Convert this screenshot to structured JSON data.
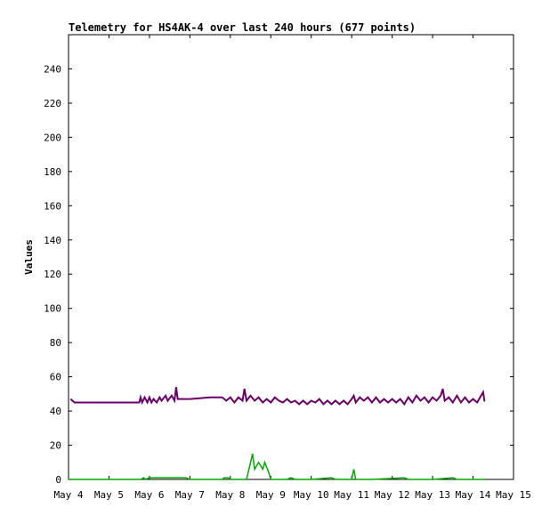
{
  "chart_data": {
    "type": "line",
    "title": "Telemetry for HS4AK-4 over last 240 hours (677 points)",
    "xlabel": "",
    "ylabel": "Values",
    "x_tick_labels": [
      "May 4",
      "May 5",
      "May 6",
      "May 7",
      "May 8",
      "May 9",
      "May 10",
      "May 11",
      "May 12",
      "May 13",
      "May 14",
      "May 15"
    ],
    "xlim_days": [
      4,
      15
    ],
    "ylim": [
      0,
      260
    ],
    "y_ticks": [
      0,
      20,
      40,
      60,
      80,
      100,
      120,
      140,
      160,
      180,
      200,
      220,
      240
    ],
    "grid": false,
    "legend": "none",
    "series": [
      {
        "color": "#6b006b",
        "points": [
          [
            4.05,
            47
          ],
          [
            4.1,
            46
          ],
          [
            4.15,
            45
          ],
          [
            5.0,
            45
          ],
          [
            5.5,
            45
          ],
          [
            5.75,
            45
          ],
          [
            5.78,
            48
          ],
          [
            5.82,
            45
          ],
          [
            5.88,
            48
          ],
          [
            5.95,
            45
          ],
          [
            6.0,
            48
          ],
          [
            6.05,
            45
          ],
          [
            6.1,
            47
          ],
          [
            6.18,
            45
          ],
          [
            6.25,
            48
          ],
          [
            6.3,
            46
          ],
          [
            6.4,
            49
          ],
          [
            6.45,
            46
          ],
          [
            6.55,
            49
          ],
          [
            6.62,
            46
          ],
          [
            6.66,
            54
          ],
          [
            6.7,
            47
          ],
          [
            7.0,
            47
          ],
          [
            7.5,
            48
          ],
          [
            7.8,
            48
          ],
          [
            7.9,
            46
          ],
          [
            8.0,
            48
          ],
          [
            8.1,
            45
          ],
          [
            8.2,
            48
          ],
          [
            8.3,
            46
          ],
          [
            8.35,
            53
          ],
          [
            8.4,
            46
          ],
          [
            8.5,
            49
          ],
          [
            8.6,
            46
          ],
          [
            8.7,
            48
          ],
          [
            8.8,
            45
          ],
          [
            8.9,
            47
          ],
          [
            9.0,
            45
          ],
          [
            9.1,
            48
          ],
          [
            9.2,
            46
          ],
          [
            9.3,
            45
          ],
          [
            9.4,
            47
          ],
          [
            9.5,
            45
          ],
          [
            9.6,
            46
          ],
          [
            9.7,
            44
          ],
          [
            9.8,
            46
          ],
          [
            9.9,
            44
          ],
          [
            10.0,
            46
          ],
          [
            10.1,
            45
          ],
          [
            10.2,
            47
          ],
          [
            10.3,
            44
          ],
          [
            10.4,
            46
          ],
          [
            10.5,
            44
          ],
          [
            10.6,
            46
          ],
          [
            10.7,
            44
          ],
          [
            10.8,
            46
          ],
          [
            10.9,
            44
          ],
          [
            11.0,
            47
          ],
          [
            11.05,
            49
          ],
          [
            11.1,
            45
          ],
          [
            11.2,
            48
          ],
          [
            11.3,
            46
          ],
          [
            11.4,
            48
          ],
          [
            11.5,
            45
          ],
          [
            11.6,
            48
          ],
          [
            11.7,
            45
          ],
          [
            11.8,
            47
          ],
          [
            11.9,
            45
          ],
          [
            12.0,
            47
          ],
          [
            12.1,
            45
          ],
          [
            12.2,
            47
          ],
          [
            12.3,
            44
          ],
          [
            12.4,
            48
          ],
          [
            12.5,
            45
          ],
          [
            12.6,
            49
          ],
          [
            12.7,
            46
          ],
          [
            12.8,
            48
          ],
          [
            12.9,
            45
          ],
          [
            13.0,
            48
          ],
          [
            13.1,
            46
          ],
          [
            13.2,
            49
          ],
          [
            13.25,
            53
          ],
          [
            13.3,
            46
          ],
          [
            13.4,
            48
          ],
          [
            13.5,
            45
          ],
          [
            13.6,
            49
          ],
          [
            13.7,
            45
          ],
          [
            13.8,
            48
          ],
          [
            13.9,
            45
          ],
          [
            14.0,
            47
          ],
          [
            14.1,
            45
          ],
          [
            14.2,
            49
          ],
          [
            14.25,
            51
          ],
          [
            14.28,
            46
          ],
          [
            14.3,
            46
          ]
        ]
      },
      {
        "color": "#00aa00",
        "points": [
          [
            4.0,
            0
          ],
          [
            5.8,
            0
          ],
          [
            5.85,
            1
          ],
          [
            5.9,
            0
          ],
          [
            6.0,
            1
          ],
          [
            6.5,
            1
          ],
          [
            6.9,
            1
          ],
          [
            7.0,
            0
          ],
          [
            7.8,
            0
          ],
          [
            7.85,
            1
          ],
          [
            7.95,
            1
          ],
          [
            8.0,
            0
          ],
          [
            8.4,
            0
          ],
          [
            8.55,
            15
          ],
          [
            8.6,
            6
          ],
          [
            8.7,
            10
          ],
          [
            8.8,
            6
          ],
          [
            8.85,
            10
          ],
          [
            8.95,
            4
          ],
          [
            9.0,
            0
          ],
          [
            9.4,
            0
          ],
          [
            9.5,
            1
          ],
          [
            9.6,
            0
          ],
          [
            10.0,
            0
          ],
          [
            10.5,
            1
          ],
          [
            10.6,
            0
          ],
          [
            11.0,
            0
          ],
          [
            11.05,
            6
          ],
          [
            11.1,
            0
          ],
          [
            11.5,
            0
          ],
          [
            12.3,
            1
          ],
          [
            12.4,
            0
          ],
          [
            13.0,
            0
          ],
          [
            13.5,
            1
          ],
          [
            13.6,
            0
          ],
          [
            14.3,
            0
          ]
        ]
      }
    ]
  }
}
